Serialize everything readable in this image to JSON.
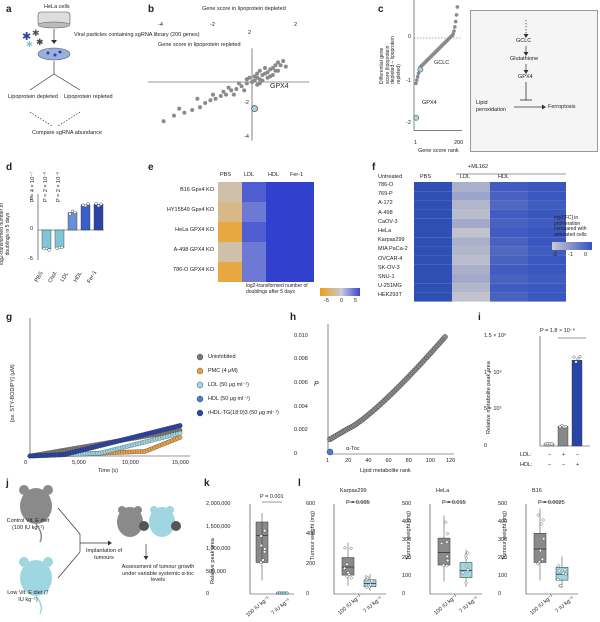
{
  "panel_labels": [
    "a",
    "b",
    "c",
    "d",
    "e",
    "f",
    "g",
    "h",
    "i",
    "j",
    "k",
    "l"
  ],
  "panel_a": {
    "cells": "HeLa cells",
    "viral": "Viral particles containing sgRNA library (200 genes)",
    "depleted": "Lipoprotein depleted",
    "repleted": "Lipoprotein repleted",
    "compare": "Compare sgRNA abundance"
  },
  "panel_b": {
    "chart_data": {
      "type": "scatter",
      "xlabel": "Gene score in lipoprotein depleted",
      "ylabel": "Gene score in lipoprotein repleted",
      "xticks": [
        "-4",
        "-2",
        "2"
      ],
      "yticks": [
        "2",
        "-2",
        "-4"
      ],
      "xlim": [
        -4,
        2
      ],
      "ylim": [
        -4,
        2
      ],
      "highlight": {
        "label": "GPX4",
        "x": 0.1,
        "y": -1.9
      },
      "points": [
        [
          0.2,
          0.3
        ],
        [
          0.4,
          0.5
        ],
        [
          0.3,
          0.2
        ],
        [
          0.5,
          0.6
        ],
        [
          0.1,
          0.1
        ],
        [
          0.6,
          0.7
        ],
        [
          0.7,
          0.9
        ],
        [
          0.8,
          1.0
        ],
        [
          0.9,
          1.2
        ],
        [
          1.0,
          1.4
        ],
        [
          1.1,
          1.2
        ],
        [
          1.2,
          1.5
        ],
        [
          0.0,
          0.0
        ],
        [
          -0.2,
          -0.1
        ],
        [
          -0.4,
          -0.3
        ],
        [
          -0.6,
          -0.5
        ],
        [
          -0.8,
          -0.6
        ],
        [
          -1.0,
          -0.9
        ],
        [
          -1.2,
          -1.0
        ],
        [
          -1.4,
          -1.2
        ],
        [
          -1.6,
          -1.3
        ],
        [
          -1.8,
          -1.5
        ],
        [
          -2.0,
          -1.8
        ],
        [
          -2.3,
          -2.0
        ],
        [
          -2.6,
          -2.2
        ],
        [
          -3.0,
          -2.4
        ],
        [
          -3.4,
          -2.8
        ],
        [
          0.3,
          0.8
        ],
        [
          0.5,
          1.0
        ],
        [
          0.6,
          0.3
        ],
        [
          0.2,
          -0.2
        ],
        [
          -0.1,
          0.3
        ],
        [
          0.4,
          0.1
        ],
        [
          0.7,
          0.4
        ],
        [
          0.9,
          0.8
        ],
        [
          1.3,
          1.1
        ],
        [
          -0.5,
          -0.1
        ],
        [
          -0.3,
          -0.6
        ],
        [
          -0.9,
          -0.4
        ],
        [
          -1.1,
          -0.7
        ],
        [
          -0.7,
          -0.9
        ],
        [
          -1.5,
          -0.9
        ],
        [
          -2.1,
          -1.2
        ],
        [
          -2.8,
          -1.9
        ],
        [
          0.8,
          0.5
        ],
        [
          1.0,
          0.8
        ],
        [
          0.2,
          0.6
        ],
        [
          0.1,
          0.4
        ],
        [
          -0.2,
          0.2
        ],
        [
          0.3,
          -0.1
        ]
      ]
    }
  },
  "panel_c": {
    "chart_data": {
      "type": "scatter",
      "xlabel": "Gene score rank",
      "ylabel": "Differential gene score (lipoprotein depleted – lipoprotein repleted)",
      "xticks": [
        "1",
        "200"
      ],
      "yticks": [
        "0",
        "-1",
        "-2"
      ],
      "xlim": [
        1,
        200
      ],
      "ylim": [
        -2.2,
        1
      ],
      "labels": [
        {
          "label": "GCLC",
          "rank": 22,
          "value": -0.75
        },
        {
          "label": "GPX4",
          "rank": 2,
          "value": -1.9
        }
      ]
    },
    "pathway": {
      "gclc": "GCLC",
      "glutathione": "Glutathione",
      "gpx4": "GPX4",
      "lipid": "Lipid peroxidation",
      "ferroptosis": "Ferroptosis"
    }
  },
  "panel_d": {
    "chart_data": {
      "type": "bar",
      "ylabel": "log2-transformed number of doublings in 5 days",
      "categories": [
        "PBS",
        "Chol.",
        "LDL",
        "HDL",
        "Fer-1"
      ],
      "values": [
        -3.1,
        -2.9,
        2.9,
        4.2,
        4.3
      ],
      "colors": [
        "#7fc7d6",
        "#7fc7d6",
        "#6a8fd8",
        "#3a5fc8",
        "#2a44a8"
      ],
      "yticks": [
        "5",
        "0",
        "-5"
      ],
      "ylim": [
        -5,
        6
      ],
      "pvalues": [
        "P = 4 × 10⁻⁷",
        "P = 2 × 10⁻⁶",
        "P = 2 × 10⁻⁶"
      ]
    }
  },
  "panel_e": {
    "chart_data": {
      "type": "heatmap",
      "columns": [
        "PBS",
        "LDL",
        "HDL",
        "Fer-1"
      ],
      "rows": [
        "B16 Gpx4 KO",
        "HY15549 Gpx4 KO",
        "HeLa GPX4 KO",
        "A-498 GPX4 KO",
        "786-O GPX4 KO"
      ],
      "values": [
        [
          -1,
          4,
          5,
          5
        ],
        [
          -2,
          3,
          5,
          5
        ],
        [
          -4,
          4,
          5,
          5
        ],
        [
          -1,
          3,
          5,
          5
        ],
        [
          -4,
          3,
          5,
          5
        ]
      ],
      "legend_label": "log2-transformed number of doublings after 5 days",
      "legend_ticks": [
        "-5",
        "0",
        "5"
      ]
    }
  },
  "panel_f": {
    "chart_data": {
      "type": "heatmap",
      "header": "+ML162",
      "columns": [
        "Untreated",
        "PBS",
        "LDL",
        "HDL"
      ],
      "rows": [
        "786-O",
        "769-P",
        "A-172",
        "A-498",
        "CaOV-3",
        "HeLa",
        "Karpas299",
        "MIA PaCa-2",
        "OVCAR-4",
        "SK-OV-3",
        "SNU-1",
        "U-251MG",
        "HEK293T"
      ],
      "values": [
        [
          0,
          -1.6,
          -0.2,
          -0.1
        ],
        [
          0,
          -1.4,
          -0.3,
          -0.1
        ],
        [
          0,
          -1.7,
          -0.4,
          -0.2
        ],
        [
          0,
          -1.8,
          -0.2,
          -0.1
        ],
        [
          0,
          -1.5,
          -0.3,
          -0.2
        ],
        [
          0,
          -1.9,
          -0.2,
          -0.1
        ],
        [
          0,
          -1.6,
          -0.3,
          -0.1
        ],
        [
          0,
          -1.7,
          -0.4,
          -0.2
        ],
        [
          0,
          -1.8,
          -0.3,
          -0.1
        ],
        [
          0,
          -1.6,
          -0.2,
          -0.1
        ],
        [
          0,
          -1.5,
          -0.3,
          -0.2
        ],
        [
          0,
          -1.7,
          -0.2,
          -0.1
        ],
        [
          0,
          -1.9,
          -0.3,
          -0.1
        ]
      ],
      "legend_label": "log2[FC] in proliferation compared with untreated cells",
      "legend_ticks": [
        "-2",
        "-1",
        "0"
      ]
    }
  },
  "panel_g": {
    "chart_data": {
      "type": "scatter",
      "xlabel": "Time (s)",
      "ylabel": "[ox. STY-BODIPY] (μM)",
      "xticks": [
        "0",
        "5,000",
        "10,000",
        "15,000"
      ],
      "xlim": [
        0,
        15000
      ],
      "series": [
        {
          "name": "Uninhibited",
          "color": "#7a7a7a",
          "onset": 0
        },
        {
          "name": "PMC (4 μM)",
          "color": "#e8a04a",
          "onset": 11500
        },
        {
          "name": "LDL (50 μg ml⁻¹)",
          "color": "#9fd6e2",
          "onset": 7000
        },
        {
          "name": "HDL (50 μg ml⁻¹)",
          "color": "#4a7cd0",
          "onset": 3500
        },
        {
          "name": "rHDL-TG(18:0)3 (50 μg ml⁻¹)",
          "color": "#2a44a8",
          "onset": 3300
        }
      ]
    }
  },
  "panel_h": {
    "chart_data": {
      "type": "scatter",
      "xlabel": "Lipid metabolite rank",
      "ylabel": "P",
      "xticks": [
        "1",
        "20",
        "40",
        "60",
        "80",
        "100",
        "120"
      ],
      "yticks": [
        "0",
        "0.002",
        "0.004",
        "0.006",
        "0.008",
        "0.010"
      ],
      "xlim": [
        1,
        120
      ],
      "ylim": [
        0,
        0.011
      ],
      "highlight": {
        "label": "α-Toc",
        "rank": 1,
        "p": 0.0
      }
    }
  },
  "panel_i": {
    "chart_data": {
      "type": "bar",
      "ylabel": "Relative metabolite peak area",
      "yticks": [
        "0",
        "5 × 10⁵",
        "1 × 10⁶",
        "1.5 × 10⁶"
      ],
      "ylim": [
        0,
        1500000
      ],
      "values": [
        30000,
        270000,
        1170000
      ],
      "colors": [
        "#cccccc",
        "#888888",
        "#2a44a8"
      ],
      "row_labels": [
        "LDL:",
        "HDL:"
      ],
      "signs_ldl": [
        "–",
        "+",
        "–"
      ],
      "signs_hdl": [
        "–",
        "–",
        "+"
      ],
      "pvalue": "P = 1.8 × 10⁻⁶"
    }
  },
  "panel_j": {
    "control": "Control Vit. E diet (100 IU kg⁻¹)",
    "low": "Low Vit. E diet (7 IU kg⁻¹)",
    "implant": "Implantation of tumours",
    "assess": "Assessment of tumour growth under variable systemic α-toc levels"
  },
  "panel_k": {
    "chart_data": {
      "type": "box",
      "ylabel": "Relative peak area",
      "yticks": [
        "0",
        "500,000",
        "1,000,000",
        "1,500,000",
        "2,000,000"
      ],
      "ylim": [
        0,
        2000000
      ],
      "categories": [
        "100 IU kg⁻¹",
        "7 IU kg⁻¹"
      ],
      "pvalue": "P = 0.001"
    }
  },
  "panel_l": {
    "ylabel": "Tumour weight (mg)",
    "categories": [
      "100 IU kg⁻¹",
      "7 IU kg⁻¹"
    ],
    "charts": [
      {
        "title": "Karpas299",
        "pvalue": "P = 0.005",
        "yticks": [
          "0",
          "200",
          "400",
          "600"
        ],
        "ymax": 600,
        "med": [
          180,
          70
        ]
      },
      {
        "title": "HeLa",
        "pvalue": "P = 0.015",
        "yticks": [
          "0",
          "100",
          "200",
          "300",
          "400",
          "500"
        ],
        "ymax": 500,
        "med": [
          230,
          130
        ]
      },
      {
        "title": "B16",
        "pvalue": "P = 0.0025",
        "yticks": [
          "0",
          "100",
          "200",
          "300",
          "400",
          "500"
        ],
        "ymax": 500,
        "med": [
          250,
          110
        ]
      }
    ]
  }
}
